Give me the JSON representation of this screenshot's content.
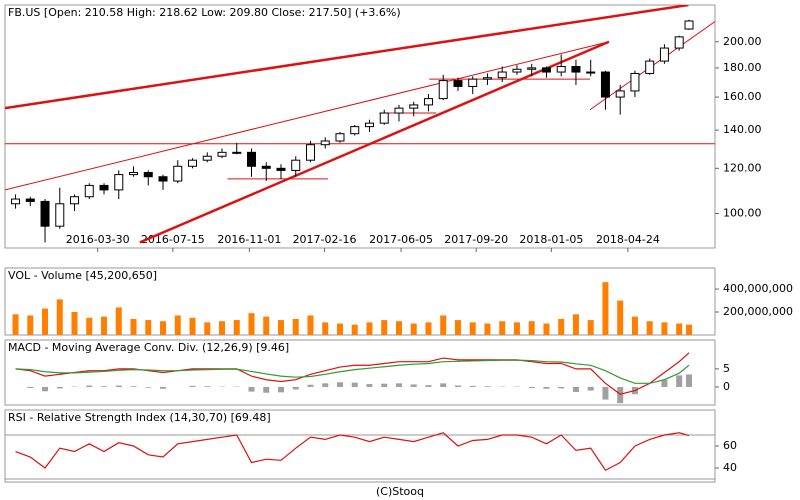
{
  "chart_data": [
    {
      "type": "candlestick",
      "title": "FB.US [Open: 210.58  High: 218.62  Low: 209.80  Close: 217.50]  (+3.6%)",
      "x": [
        "2015-12-04",
        "2015-12-25",
        "2016-01-15",
        "2016-02-05",
        "2016-02-26",
        "2016-03-18",
        "2016-04-08",
        "2016-04-29",
        "2016-05-20",
        "2016-06-10",
        "2016-07-01",
        "2016-07-22",
        "2016-08-12",
        "2016-09-02",
        "2016-09-23",
        "2016-10-14",
        "2016-11-04",
        "2016-11-25",
        "2016-12-16",
        "2017-01-06",
        "2017-01-27",
        "2017-02-17",
        "2017-03-10",
        "2017-03-31",
        "2017-04-21",
        "2017-05-12",
        "2017-06-02",
        "2017-06-23",
        "2017-07-14",
        "2017-08-04",
        "2017-08-25",
        "2017-09-15",
        "2017-10-06",
        "2017-10-27",
        "2017-11-17",
        "2017-12-08",
        "2017-12-29",
        "2018-01-19",
        "2018-02-09",
        "2018-03-02",
        "2018-03-23",
        "2018-04-13",
        "2018-05-04",
        "2018-05-25",
        "2018-06-15",
        "2018-07-06",
        "2018-07-20"
      ],
      "open": [
        104,
        106,
        105,
        95,
        104,
        107,
        112,
        110,
        117,
        118,
        116,
        114,
        121,
        124,
        126,
        128,
        128,
        121,
        120,
        119,
        124,
        132,
        134,
        138,
        142,
        144,
        150,
        153,
        155,
        159,
        171,
        167,
        172,
        173,
        177,
        179,
        180,
        177,
        181,
        177,
        177,
        160,
        164,
        176,
        185,
        195,
        210.58
      ],
      "high": [
        108,
        107,
        106,
        111,
        108,
        113,
        113,
        119,
        121,
        119,
        117,
        124,
        125,
        128,
        130,
        133,
        130,
        123,
        122,
        126,
        134,
        136,
        139,
        143,
        146,
        152,
        155,
        157,
        162,
        175,
        173,
        174,
        176,
        181,
        182,
        183,
        181,
        190,
        186,
        186,
        178,
        168,
        178,
        187,
        198,
        205,
        218.62
      ],
      "low": [
        102,
        103,
        89,
        94,
        101,
        106,
        108,
        106,
        116,
        112,
        110,
        113,
        120,
        123,
        125,
        127,
        116,
        114,
        115,
        116,
        123,
        130,
        133,
        137,
        139,
        143,
        145,
        148,
        151,
        158,
        164,
        162,
        168,
        170,
        175,
        174,
        173,
        174,
        168,
        174,
        152,
        149,
        160,
        175,
        183,
        193,
        209.8
      ],
      "close": [
        106,
        105,
        95,
        104,
        107,
        112,
        110,
        117,
        118,
        116,
        114,
        121,
        124,
        126,
        128,
        128,
        121,
        120,
        119,
        124,
        132,
        134,
        138,
        142,
        144,
        150,
        153,
        155,
        159,
        171,
        167,
        172,
        173,
        177,
        179,
        180,
        177,
        181,
        177,
        177,
        160,
        164,
        176,
        185,
        195,
        204,
        217.5
      ],
      "up_color": "#ffffff",
      "down_color": "#000000",
      "xlim": [
        "2015-11-19",
        "2018-08-26"
      ],
      "xticks": [
        "2016-03-30",
        "2016-07-15",
        "2016-11-01",
        "2017-02-16",
        "2017-06-05",
        "2017-09-20",
        "2018-01-05",
        "2018-04-24"
      ],
      "ylim": [
        87,
        232
      ],
      "log": true,
      "yticks": [
        {
          "value": 100,
          "label": "100.00"
        },
        {
          "value": 120,
          "label": "120.00"
        },
        {
          "value": 140,
          "label": "140.00"
        },
        {
          "value": 160,
          "label": "160.00"
        },
        {
          "value": 180,
          "label": "180.00"
        },
        {
          "value": 200,
          "label": "200.00"
        }
      ],
      "line_color": "#dd1111",
      "lines": [
        {
          "points": [
            [
              "2015-11-19",
              153
            ],
            [
              "2018-07-19",
              232
            ]
          ],
          "bold": true
        },
        {
          "points": [
            [
              "2016-05-29",
              89
            ],
            [
              "2018-03-28",
              200
            ]
          ],
          "bold": true
        },
        {
          "points": [
            [
              "2015-11-19",
              110
            ],
            [
              "2018-03-28",
              200
            ]
          ],
          "bold": false
        },
        {
          "points": [
            [
              "2018-03-01",
              152
            ],
            [
              "2018-08-26",
              217
            ]
          ],
          "bold": false
        },
        {
          "points": [
            [
              "2015-11-19",
              132.5
            ],
            [
              "2018-08-26",
              132.5
            ]
          ],
          "bold": false
        },
        {
          "points": [
            [
              "2016-10-01",
              115
            ],
            [
              "2017-02-21",
              115
            ]
          ],
          "bold": false
        },
        {
          "points": [
            [
              "2017-05-05",
              150
            ],
            [
              "2017-07-25",
              150
            ]
          ],
          "bold": false
        },
        {
          "points": [
            [
              "2017-07-15",
              172
            ],
            [
              "2018-03-01",
              172
            ]
          ],
          "bold": false
        }
      ]
    },
    {
      "type": "bar",
      "title": "VOL - Volume [45,200,650]",
      "color": "#ff7f00",
      "values": [
        180000000,
        170000000,
        230000000,
        310000000,
        200000000,
        150000000,
        160000000,
        240000000,
        140000000,
        130000000,
        120000000,
        170000000,
        150000000,
        110000000,
        120000000,
        130000000,
        190000000,
        160000000,
        130000000,
        140000000,
        170000000,
        110000000,
        100000000,
        90000000,
        110000000,
        130000000,
        120000000,
        100000000,
        110000000,
        170000000,
        130000000,
        110000000,
        100000000,
        120000000,
        110000000,
        120000000,
        100000000,
        140000000,
        180000000,
        130000000,
        460000000,
        300000000,
        160000000,
        120000000,
        110000000,
        100000000,
        90000000
      ],
      "ylim": [
        0,
        583000000
      ],
      "yticks": [
        {
          "value": 200000000,
          "label": "200,000,000"
        },
        {
          "value": 400000000,
          "label": "400,000,000"
        }
      ]
    },
    {
      "type": "macd",
      "title": "MACD - Moving Average Conv. Div. (12,26,9) [9.46]",
      "series": [
        {
          "color": "#dd1111",
          "values": [
            5,
            4.5,
            3,
            3.5,
            4,
            4.5,
            4.5,
            5,
            5,
            4.5,
            4,
            4.5,
            5,
            5,
            5,
            5,
            3,
            2,
            1.5,
            2,
            3.5,
            4.5,
            5.5,
            6,
            6,
            6.5,
            7,
            7,
            7,
            8,
            7.5,
            7.5,
            7.5,
            7.5,
            7.5,
            7,
            6.5,
            6.5,
            5,
            5,
            1,
            -2,
            -1,
            1,
            4,
            7,
            9.46
          ]
        },
        {
          "color": "#339933",
          "values": [
            5,
            4.8,
            4.2,
            3.9,
            3.9,
            4.1,
            4.3,
            4.6,
            4.8,
            4.7,
            4.5,
            4.5,
            4.7,
            4.8,
            4.9,
            4.9,
            4.3,
            3.6,
            3,
            2.7,
            2.9,
            3.5,
            4.2,
            4.8,
            5.2,
            5.6,
            6,
            6.3,
            6.5,
            7,
            7.1,
            7.2,
            7.3,
            7.4,
            7.4,
            7.3,
            7,
            6.9,
            6.4,
            6,
            4.5,
            2.5,
            1,
            1,
            2,
            3.8,
            6
          ]
        }
      ],
      "histogram": {
        "color": "#a0a0a0",
        "values": [
          0,
          -0.3,
          -1.2,
          -0.4,
          0.1,
          0.4,
          0.2,
          0.4,
          0.2,
          -0.2,
          -0.5,
          0,
          0.3,
          0.2,
          0.1,
          0.1,
          -1.3,
          -1.6,
          -1.5,
          -0.7,
          0.6,
          1,
          1.3,
          1.2,
          0.8,
          0.9,
          1,
          0.7,
          0.5,
          1,
          0.4,
          0.3,
          0.2,
          0.1,
          0.1,
          -0.3,
          -0.5,
          -0.4,
          -1.4,
          -1,
          -3.5,
          -4.5,
          -2,
          0,
          2,
          3.2,
          3.46
        ]
      },
      "ylim": [
        -5,
        13
      ],
      "yticks": [
        0,
        5
      ]
    },
    {
      "type": "line",
      "title": "RSI - Relative Strength Index (14,30,70) [69.48]",
      "color": "#dd1111",
      "values": [
        55,
        50,
        40,
        58,
        55,
        62,
        55,
        63,
        60,
        52,
        50,
        62,
        64,
        66,
        68,
        70,
        45,
        48,
        47,
        58,
        68,
        66,
        70,
        68,
        64,
        68,
        66,
        64,
        68,
        72,
        60,
        65,
        66,
        70,
        70,
        68,
        62,
        70,
        56,
        58,
        38,
        45,
        60,
        66,
        70,
        72,
        69.48
      ],
      "levels": [
        30,
        70
      ],
      "level_color": "#999999",
      "ylim": [
        27.3,
        92.7
      ],
      "yticks": [
        40,
        60
      ]
    }
  ],
  "footer": "(C)Stooq"
}
